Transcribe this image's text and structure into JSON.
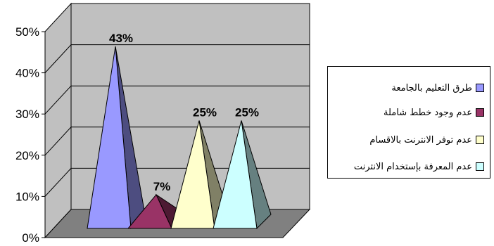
{
  "chart_data": {
    "type": "bar",
    "style": "3d-pyramid",
    "categories": [
      "طرق التعليم بالجامعة",
      "عدم وجود خطط شاملة",
      "عدم توفر الانترنت بالاقسام",
      "عدم المعرفة بإستخدام الانترنت"
    ],
    "values": [
      43,
      7,
      25,
      25
    ],
    "data_labels": [
      "43%",
      "7%",
      "25%",
      "25%"
    ],
    "colors": [
      "#9999FF",
      "#993366",
      "#FFFFCC",
      "#CCFFFF"
    ],
    "side_colors": [
      "#4D4D80",
      "#4D1A33",
      "#808066",
      "#668080"
    ],
    "yticks": [
      "0%",
      "10%",
      "20%",
      "30%",
      "40%",
      "50%"
    ],
    "ylim": [
      0,
      50
    ],
    "grid": true,
    "legend_position": "right",
    "wall_color": "#C0C0C0",
    "floor_color": "#808080"
  }
}
